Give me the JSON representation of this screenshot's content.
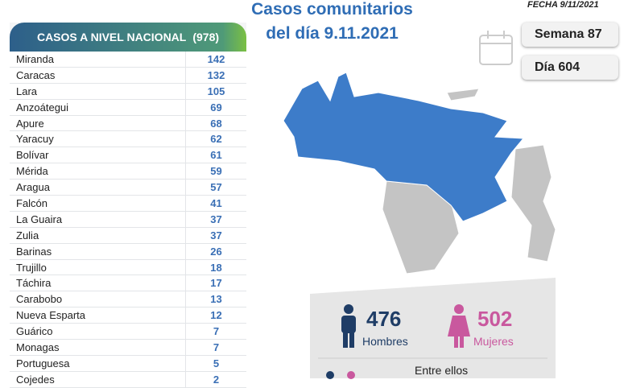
{
  "header": {
    "title_line1": "Casos comunitarios",
    "title_line2": "del día 9.11.2021",
    "date": "FECHA 9/11/2021",
    "week": "Semana 87",
    "day": "Día 604"
  },
  "table": {
    "title": "CASOS A NIVEL NACIONAL",
    "total": "(978)",
    "rows": [
      [
        "Miranda",
        "142"
      ],
      [
        "Caracas",
        "132"
      ],
      [
        "Lara",
        "105"
      ],
      [
        "Anzoátegui",
        "69"
      ],
      [
        "Apure",
        "68"
      ],
      [
        "Yaracuy",
        "62"
      ],
      [
        "Bolívar",
        "61"
      ],
      [
        "Mérida",
        "59"
      ],
      [
        "Aragua",
        "57"
      ],
      [
        "Falcón",
        "41"
      ],
      [
        "La Guaira",
        "37"
      ],
      [
        "Zulia",
        "37"
      ],
      [
        "Barinas",
        "26"
      ],
      [
        "Trujillo",
        "18"
      ],
      [
        "Táchira",
        "17"
      ],
      [
        "Carabobo",
        "13"
      ],
      [
        "Nueva Esparta",
        "12"
      ],
      [
        "Guárico",
        "7"
      ],
      [
        "Monagas",
        "7"
      ],
      [
        "Portuguesa",
        "5"
      ],
      [
        "Cojedes",
        "2"
      ]
    ]
  },
  "stats": {
    "men_count": "476",
    "men_label": "Hombres",
    "women_count": "502",
    "women_label": "Mujeres",
    "note": "Entre ellos"
  }
}
